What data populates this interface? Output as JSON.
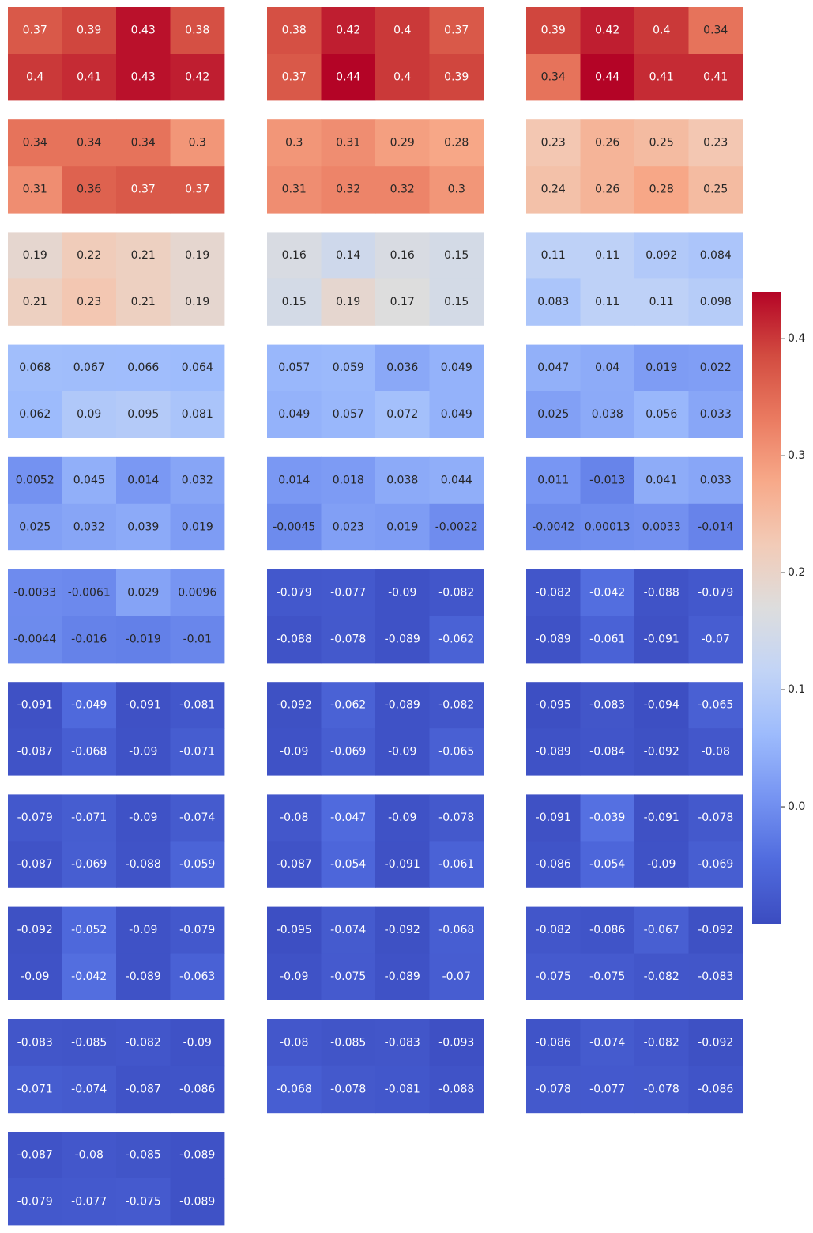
{
  "chart_data": {
    "type": "heatmap",
    "colormap": "coolwarm",
    "color_range": [
      -0.1,
      0.44
    ],
    "colorbar": {
      "ticks": [
        0.0,
        0.1,
        0.2,
        0.3,
        0.4
      ],
      "tick_labels": [
        "0.0",
        "0.1",
        "0.2",
        "0.3",
        "0.4"
      ]
    },
    "panel_layout": {
      "rows": 11,
      "cols": 3
    },
    "panels": [
      {
        "cells": [
          [
            0.37,
            0.39,
            0.43,
            0.38
          ],
          [
            0.4,
            0.41,
            0.43,
            0.42
          ]
        ],
        "labels": [
          [
            "0.37",
            "0.39",
            "0.43",
            "0.38"
          ],
          [
            "0.4",
            "0.41",
            "0.43",
            "0.42"
          ]
        ]
      },
      {
        "cells": [
          [
            0.38,
            0.42,
            0.4,
            0.37
          ],
          [
            0.37,
            0.44,
            0.4,
            0.39
          ]
        ],
        "labels": [
          [
            "0.38",
            "0.42",
            "0.4",
            "0.37"
          ],
          [
            "0.37",
            "0.44",
            "0.4",
            "0.39"
          ]
        ]
      },
      {
        "cells": [
          [
            0.39,
            0.42,
            0.4,
            0.34
          ],
          [
            0.34,
            0.44,
            0.41,
            0.41
          ]
        ],
        "labels": [
          [
            "0.39",
            "0.42",
            "0.4",
            "0.34"
          ],
          [
            "0.34",
            "0.44",
            "0.41",
            "0.41"
          ]
        ]
      },
      {
        "cells": [
          [
            0.34,
            0.34,
            0.34,
            0.3
          ],
          [
            0.31,
            0.36,
            0.37,
            0.37
          ]
        ],
        "labels": [
          [
            "0.34",
            "0.34",
            "0.34",
            "0.3"
          ],
          [
            "0.31",
            "0.36",
            "0.37",
            "0.37"
          ]
        ]
      },
      {
        "cells": [
          [
            0.3,
            0.31,
            0.29,
            0.28
          ],
          [
            0.31,
            0.32,
            0.32,
            0.3
          ]
        ],
        "labels": [
          [
            "0.3",
            "0.31",
            "0.29",
            "0.28"
          ],
          [
            "0.31",
            "0.32",
            "0.32",
            "0.3"
          ]
        ]
      },
      {
        "cells": [
          [
            0.23,
            0.26,
            0.25,
            0.23
          ],
          [
            0.24,
            0.26,
            0.28,
            0.25
          ]
        ],
        "labels": [
          [
            "0.23",
            "0.26",
            "0.25",
            "0.23"
          ],
          [
            "0.24",
            "0.26",
            "0.28",
            "0.25"
          ]
        ]
      },
      {
        "cells": [
          [
            0.19,
            0.22,
            0.21,
            0.19
          ],
          [
            0.21,
            0.23,
            0.21,
            0.19
          ]
        ],
        "labels": [
          [
            "0.19",
            "0.22",
            "0.21",
            "0.19"
          ],
          [
            "0.21",
            "0.23",
            "0.21",
            "0.19"
          ]
        ]
      },
      {
        "cells": [
          [
            0.16,
            0.14,
            0.16,
            0.15
          ],
          [
            0.15,
            0.19,
            0.17,
            0.15
          ]
        ],
        "labels": [
          [
            "0.16",
            "0.14",
            "0.16",
            "0.15"
          ],
          [
            "0.15",
            "0.19",
            "0.17",
            "0.15"
          ]
        ]
      },
      {
        "cells": [
          [
            0.11,
            0.11,
            0.092,
            0.084
          ],
          [
            0.083,
            0.11,
            0.11,
            0.098
          ]
        ],
        "labels": [
          [
            "0.11",
            "0.11",
            "0.092",
            "0.084"
          ],
          [
            "0.083",
            "0.11",
            "0.11",
            "0.098"
          ]
        ]
      },
      {
        "cells": [
          [
            0.068,
            0.067,
            0.066,
            0.064
          ],
          [
            0.062,
            0.09,
            0.095,
            0.081
          ]
        ],
        "labels": [
          [
            "0.068",
            "0.067",
            "0.066",
            "0.064"
          ],
          [
            "0.062",
            "0.09",
            "0.095",
            "0.081"
          ]
        ]
      },
      {
        "cells": [
          [
            0.057,
            0.059,
            0.036,
            0.049
          ],
          [
            0.049,
            0.057,
            0.072,
            0.049
          ]
        ],
        "labels": [
          [
            "0.057",
            "0.059",
            "0.036",
            "0.049"
          ],
          [
            "0.049",
            "0.057",
            "0.072",
            "0.049"
          ]
        ]
      },
      {
        "cells": [
          [
            0.047,
            0.04,
            0.019,
            0.022
          ],
          [
            0.025,
            0.038,
            0.056,
            0.033
          ]
        ],
        "labels": [
          [
            "0.047",
            "0.04",
            "0.019",
            "0.022"
          ],
          [
            "0.025",
            "0.038",
            "0.056",
            "0.033"
          ]
        ]
      },
      {
        "cells": [
          [
            0.0052,
            0.045,
            0.014,
            0.032
          ],
          [
            0.025,
            0.032,
            0.039,
            0.019
          ]
        ],
        "labels": [
          [
            "0.0052",
            "0.045",
            "0.014",
            "0.032"
          ],
          [
            "0.025",
            "0.032",
            "0.039",
            "0.019"
          ]
        ]
      },
      {
        "cells": [
          [
            0.014,
            0.018,
            0.038,
            0.044
          ],
          [
            -0.0045,
            0.023,
            0.019,
            -0.0022
          ]
        ],
        "labels": [
          [
            "0.014",
            "0.018",
            "0.038",
            "0.044"
          ],
          [
            "-0.0045",
            "0.023",
            "0.019",
            "-0.0022"
          ]
        ]
      },
      {
        "cells": [
          [
            0.011,
            -0.013,
            0.041,
            0.033
          ],
          [
            -0.0042,
            0.00013,
            0.0033,
            -0.014
          ]
        ],
        "labels": [
          [
            "0.011",
            "-0.013",
            "0.041",
            "0.033"
          ],
          [
            "-0.0042",
            "0.00013",
            "0.0033",
            "-0.014"
          ]
        ]
      },
      {
        "cells": [
          [
            -0.0033,
            -0.0061,
            0.029,
            0.0096
          ],
          [
            -0.0044,
            -0.016,
            -0.019,
            -0.01
          ]
        ],
        "labels": [
          [
            "-0.0033",
            "-0.0061",
            "0.029",
            "0.0096"
          ],
          [
            "-0.0044",
            "-0.016",
            "-0.019",
            "-0.01"
          ]
        ]
      },
      {
        "cells": [
          [
            -0.079,
            -0.077,
            -0.09,
            -0.082
          ],
          [
            -0.088,
            -0.078,
            -0.089,
            -0.062
          ]
        ],
        "labels": [
          [
            "-0.079",
            "-0.077",
            "-0.09",
            "-0.082"
          ],
          [
            "-0.088",
            "-0.078",
            "-0.089",
            "-0.062"
          ]
        ]
      },
      {
        "cells": [
          [
            -0.082,
            -0.042,
            -0.088,
            -0.079
          ],
          [
            -0.089,
            -0.061,
            -0.091,
            -0.07
          ]
        ],
        "labels": [
          [
            "-0.082",
            "-0.042",
            "-0.088",
            "-0.079"
          ],
          [
            "-0.089",
            "-0.061",
            "-0.091",
            "-0.07"
          ]
        ]
      },
      {
        "cells": [
          [
            -0.091,
            -0.049,
            -0.091,
            -0.081
          ],
          [
            -0.087,
            -0.068,
            -0.09,
            -0.071
          ]
        ],
        "labels": [
          [
            "-0.091",
            "-0.049",
            "-0.091",
            "-0.081"
          ],
          [
            "-0.087",
            "-0.068",
            "-0.09",
            "-0.071"
          ]
        ]
      },
      {
        "cells": [
          [
            -0.092,
            -0.062,
            -0.089,
            -0.082
          ],
          [
            -0.09,
            -0.069,
            -0.09,
            -0.065
          ]
        ],
        "labels": [
          [
            "-0.092",
            "-0.062",
            "-0.089",
            "-0.082"
          ],
          [
            "-0.09",
            "-0.069",
            "-0.09",
            "-0.065"
          ]
        ]
      },
      {
        "cells": [
          [
            -0.095,
            -0.083,
            -0.094,
            -0.065
          ],
          [
            -0.089,
            -0.084,
            -0.092,
            -0.08
          ]
        ],
        "labels": [
          [
            "-0.095",
            "-0.083",
            "-0.094",
            "-0.065"
          ],
          [
            "-0.089",
            "-0.084",
            "-0.092",
            "-0.08"
          ]
        ]
      },
      {
        "cells": [
          [
            -0.079,
            -0.071,
            -0.09,
            -0.074
          ],
          [
            -0.087,
            -0.069,
            -0.088,
            -0.059
          ]
        ],
        "labels": [
          [
            "-0.079",
            "-0.071",
            "-0.09",
            "-0.074"
          ],
          [
            "-0.087",
            "-0.069",
            "-0.088",
            "-0.059"
          ]
        ]
      },
      {
        "cells": [
          [
            -0.08,
            -0.047,
            -0.09,
            -0.078
          ],
          [
            -0.087,
            -0.054,
            -0.091,
            -0.061
          ]
        ],
        "labels": [
          [
            "-0.08",
            "-0.047",
            "-0.09",
            "-0.078"
          ],
          [
            "-0.087",
            "-0.054",
            "-0.091",
            "-0.061"
          ]
        ]
      },
      {
        "cells": [
          [
            -0.091,
            -0.039,
            -0.091,
            -0.078
          ],
          [
            -0.086,
            -0.054,
            -0.09,
            -0.069
          ]
        ],
        "labels": [
          [
            "-0.091",
            "-0.039",
            "-0.091",
            "-0.078"
          ],
          [
            "-0.086",
            "-0.054",
            "-0.09",
            "-0.069"
          ]
        ]
      },
      {
        "cells": [
          [
            -0.092,
            -0.052,
            -0.09,
            -0.079
          ],
          [
            -0.09,
            -0.042,
            -0.089,
            -0.063
          ]
        ],
        "labels": [
          [
            "-0.092",
            "-0.052",
            "-0.09",
            "-0.079"
          ],
          [
            "-0.09",
            "-0.042",
            "-0.089",
            "-0.063"
          ]
        ]
      },
      {
        "cells": [
          [
            -0.095,
            -0.074,
            -0.092,
            -0.068
          ],
          [
            -0.09,
            -0.075,
            -0.089,
            -0.07
          ]
        ],
        "labels": [
          [
            "-0.095",
            "-0.074",
            "-0.092",
            "-0.068"
          ],
          [
            "-0.09",
            "-0.075",
            "-0.089",
            "-0.07"
          ]
        ]
      },
      {
        "cells": [
          [
            -0.082,
            -0.086,
            -0.067,
            -0.092
          ],
          [
            -0.075,
            -0.075,
            -0.082,
            -0.083
          ]
        ],
        "labels": [
          [
            "-0.082",
            "-0.086",
            "-0.067",
            "-0.092"
          ],
          [
            "-0.075",
            "-0.075",
            "-0.082",
            "-0.083"
          ]
        ]
      },
      {
        "cells": [
          [
            -0.083,
            -0.085,
            -0.082,
            -0.09
          ],
          [
            -0.071,
            -0.074,
            -0.087,
            -0.086
          ]
        ],
        "labels": [
          [
            "-0.083",
            "-0.085",
            "-0.082",
            "-0.09"
          ],
          [
            "-0.071",
            "-0.074",
            "-0.087",
            "-0.086"
          ]
        ]
      },
      {
        "cells": [
          [
            -0.08,
            -0.085,
            -0.083,
            -0.093
          ],
          [
            -0.068,
            -0.078,
            -0.081,
            -0.088
          ]
        ],
        "labels": [
          [
            "-0.08",
            "-0.085",
            "-0.083",
            "-0.093"
          ],
          [
            "-0.068",
            "-0.078",
            "-0.081",
            "-0.088"
          ]
        ]
      },
      {
        "cells": [
          [
            -0.086,
            -0.074,
            -0.082,
            -0.092
          ],
          [
            -0.078,
            -0.077,
            -0.078,
            -0.086
          ]
        ],
        "labels": [
          [
            "-0.086",
            "-0.074",
            "-0.082",
            "-0.092"
          ],
          [
            "-0.078",
            "-0.077",
            "-0.078",
            "-0.086"
          ]
        ]
      },
      {
        "cells": [
          [
            -0.087,
            -0.08,
            -0.085,
            -0.089
          ],
          [
            -0.079,
            -0.077,
            -0.075,
            -0.089
          ]
        ],
        "labels": [
          [
            "-0.087",
            "-0.08",
            "-0.085",
            "-0.089"
          ],
          [
            "-0.079",
            "-0.077",
            "-0.075",
            "-0.089"
          ]
        ]
      }
    ]
  }
}
